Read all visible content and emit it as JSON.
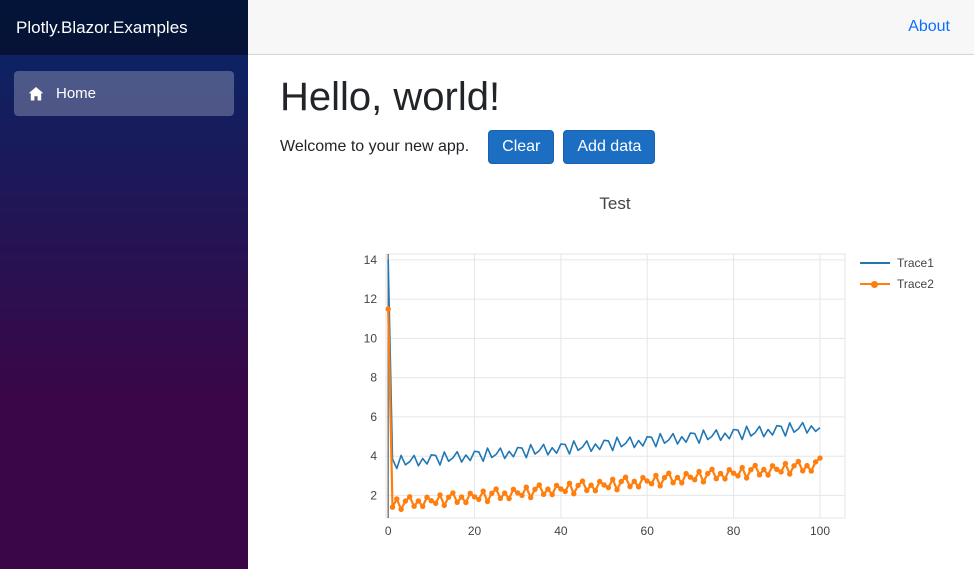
{
  "sidebar": {
    "brand": "Plotly.Blazor.Examples",
    "items": [
      {
        "label": "Home",
        "icon": "home-icon",
        "active": true
      }
    ]
  },
  "top_bar": {
    "links": [
      {
        "label": "About"
      }
    ]
  },
  "main": {
    "title": "Hello, world!",
    "welcome_text": "Welcome to your new app.",
    "buttons": [
      {
        "label": "Clear"
      },
      {
        "label": "Add data"
      }
    ]
  },
  "colors": {
    "accent_button": "#1b6ec2",
    "link_blue": "#0d6efd",
    "sidebar_gradient_top": "#052767",
    "sidebar_gradient_bottom": "#3a0647",
    "nav_active_bg": "rgba(255,255,255,0.25)",
    "grid": "#e6e6e6",
    "zeroline": "#7f7f7f",
    "tick_text": "#444444"
  },
  "chart_data": {
    "type": "line",
    "title": "Test",
    "legend_position": "right",
    "grid": true,
    "xaxis": {
      "range": [
        -0.5,
        105.8
      ],
      "ticks": [
        0,
        20,
        40,
        60,
        80,
        100
      ]
    },
    "yaxis": {
      "range": [
        0.85,
        14.3
      ],
      "ticks": [
        2,
        4,
        6,
        8,
        10,
        12,
        14
      ]
    },
    "x": [
      0,
      1,
      2,
      3,
      4,
      5,
      6,
      7,
      8,
      9,
      10,
      11,
      12,
      13,
      14,
      15,
      16,
      17,
      18,
      19,
      20,
      21,
      22,
      23,
      24,
      25,
      26,
      27,
      28,
      29,
      30,
      31,
      32,
      33,
      34,
      35,
      36,
      37,
      38,
      39,
      40,
      41,
      42,
      43,
      44,
      45,
      46,
      47,
      48,
      49,
      50,
      51,
      52,
      53,
      54,
      55,
      56,
      57,
      58,
      59,
      60,
      61,
      62,
      63,
      64,
      65,
      66,
      67,
      68,
      69,
      70,
      71,
      72,
      73,
      74,
      75,
      76,
      77,
      78,
      79,
      80,
      81,
      82,
      83,
      84,
      85,
      86,
      87,
      88,
      89,
      90,
      91,
      92,
      93,
      94,
      95,
      96,
      97,
      98,
      99,
      100
    ],
    "series": [
      {
        "name": "Trace1",
        "color": "#1f77b4",
        "mode": "lines",
        "y": [
          14.0,
          3.85,
          3.37,
          4.04,
          3.56,
          3.72,
          4.04,
          3.51,
          3.88,
          3.6,
          4.07,
          4.04,
          3.55,
          4.22,
          3.74,
          3.91,
          4.23,
          3.7,
          4.06,
          3.78,
          4.25,
          4.22,
          3.74,
          4.41,
          3.93,
          4.09,
          4.41,
          3.88,
          4.25,
          3.97,
          4.44,
          4.41,
          3.92,
          4.59,
          4.11,
          4.28,
          4.6,
          4.07,
          4.43,
          4.15,
          4.62,
          4.59,
          4.11,
          4.78,
          4.3,
          4.46,
          4.78,
          4.25,
          4.62,
          4.34,
          4.81,
          4.78,
          4.29,
          4.96,
          4.48,
          4.65,
          4.97,
          4.44,
          4.8,
          4.52,
          4.99,
          4.96,
          4.48,
          5.15,
          4.66,
          4.83,
          5.15,
          4.62,
          4.99,
          4.71,
          5.18,
          5.15,
          4.66,
          5.33,
          4.85,
          5.02,
          5.34,
          4.81,
          5.17,
          4.89,
          5.36,
          5.33,
          4.85,
          5.52,
          5.03,
          5.2,
          5.52,
          4.99,
          5.36,
          5.08,
          5.55,
          5.52,
          5.03,
          5.7,
          5.22,
          5.39,
          5.71,
          5.18,
          5.54,
          5.26,
          5.45
        ]
      },
      {
        "name": "Trace2",
        "color": "#ff7f0e",
        "mode": "lines+markers",
        "y": [
          11.5,
          1.4,
          1.82,
          1.29,
          1.71,
          1.93,
          1.45,
          1.72,
          1.44,
          1.91,
          1.73,
          1.6,
          2.02,
          1.49,
          1.91,
          2.13,
          1.65,
          1.92,
          1.64,
          2.11,
          1.93,
          1.8,
          2.22,
          1.69,
          2.11,
          2.33,
          1.85,
          2.12,
          1.84,
          2.31,
          2.13,
          2.0,
          2.42,
          1.89,
          2.31,
          2.53,
          2.05,
          2.32,
          2.04,
          2.51,
          2.33,
          2.2,
          2.62,
          2.09,
          2.51,
          2.73,
          2.25,
          2.52,
          2.24,
          2.71,
          2.53,
          2.4,
          2.82,
          2.29,
          2.71,
          2.93,
          2.45,
          2.72,
          2.44,
          2.91,
          2.73,
          2.6,
          3.02,
          2.49,
          2.91,
          3.13,
          2.65,
          2.92,
          2.64,
          3.11,
          2.93,
          2.8,
          3.22,
          2.69,
          3.11,
          3.33,
          2.85,
          3.12,
          2.84,
          3.31,
          3.13,
          3.0,
          3.42,
          2.89,
          3.31,
          3.53,
          3.05,
          3.32,
          3.04,
          3.51,
          3.33,
          3.2,
          3.62,
          3.09,
          3.51,
          3.73,
          3.25,
          3.52,
          3.24,
          3.71,
          3.9
        ]
      }
    ]
  }
}
